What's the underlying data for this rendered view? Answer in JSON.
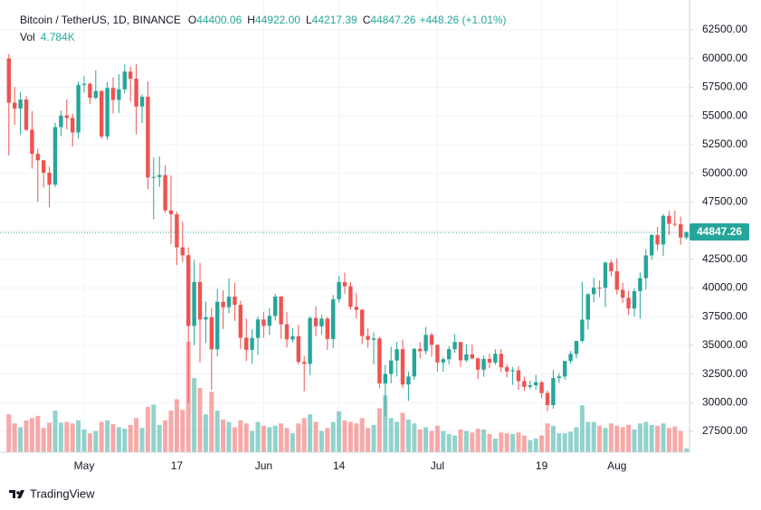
{
  "chart_data": {
    "type": "candlestick",
    "title": "Bitcoin / TetherUS, 1D, BINANCE",
    "header_values": [
      {
        "key": "O",
        "label": "44400.06"
      },
      {
        "key": "H",
        "label": "44922.00"
      },
      {
        "key": "L",
        "label": "44217.39"
      },
      {
        "key": "C",
        "label": "44847.26"
      }
    ],
    "change_label": "+448.26 (+1.01%)",
    "colors": {
      "up": "#26a69a",
      "down": "#ef5350"
    },
    "grid": true,
    "ylim": [
      25690,
      64470
    ],
    "yticks": [
      {
        "value": 62500,
        "label": "62500.00"
      },
      {
        "value": 60000,
        "label": "60000.00"
      },
      {
        "value": 57500,
        "label": "57500.00"
      },
      {
        "value": 55000,
        "label": "55000.00"
      },
      {
        "value": 52500,
        "label": "52500.00"
      },
      {
        "value": 50000,
        "label": "50000.00"
      },
      {
        "value": 47500,
        "label": "47500.00"
      },
      {
        "value": 45000,
        "label": "45000.00"
      },
      {
        "value": 42500,
        "label": "42500.00"
      },
      {
        "value": 40000,
        "label": "40000.00"
      },
      {
        "value": 37500,
        "label": "37500.00"
      },
      {
        "value": 35000,
        "label": "35000.00"
      },
      {
        "value": 32500,
        "label": "32500.00"
      },
      {
        "value": 30000,
        "label": "30000.00"
      },
      {
        "value": 27500,
        "label": "27500.00"
      }
    ],
    "categories": [
      null,
      null,
      null,
      null,
      null,
      null,
      null,
      null,
      null,
      null,
      null,
      null,
      null,
      "May",
      null,
      null,
      null,
      null,
      null,
      null,
      null,
      null,
      null,
      null,
      null,
      null,
      null,
      null,
      null,
      "17",
      null,
      null,
      null,
      null,
      null,
      null,
      null,
      null,
      null,
      null,
      null,
      null,
      null,
      null,
      "Jun",
      null,
      null,
      null,
      null,
      null,
      null,
      null,
      null,
      null,
      null,
      null,
      null,
      "14",
      null,
      null,
      null,
      null,
      null,
      null,
      null,
      null,
      null,
      null,
      null,
      null,
      null,
      null,
      null,
      null,
      "Jul",
      null,
      null,
      null,
      null,
      null,
      null,
      null,
      null,
      null,
      null,
      null,
      null,
      null,
      null,
      null,
      null,
      null,
      "19",
      null,
      null,
      null,
      null,
      null,
      null,
      null,
      null,
      null,
      null,
      null,
      null,
      "Aug",
      null,
      null,
      null,
      null,
      null,
      null,
      null,
      null,
      null,
      null,
      null,
      null
    ],
    "ohlc": [
      [
        60006,
        60400,
        51541,
        56150
      ],
      [
        56150,
        57520,
        54221,
        55633
      ],
      [
        55633,
        57076,
        53329,
        56425
      ],
      [
        56425,
        56757,
        53695,
        53788
      ],
      [
        53788,
        55410,
        50400,
        51690
      ],
      [
        51690,
        52130,
        47500,
        51125
      ],
      [
        51125,
        51167,
        48753,
        50047
      ],
      [
        50047,
        50567,
        47044,
        49004
      ],
      [
        49004,
        54400,
        48807,
        54021
      ],
      [
        54021,
        55460,
        53222,
        55033
      ],
      [
        55033,
        56428,
        53813,
        54824
      ],
      [
        54824,
        55195,
        52330,
        53556
      ],
      [
        53556,
        58000,
        53013,
        57697
      ],
      [
        57697,
        58459,
        57025,
        57797
      ],
      [
        57797,
        57911,
        56035,
        56578
      ],
      [
        56578,
        58972,
        56437,
        57169
      ],
      [
        57169,
        57200,
        53000,
        53200
      ],
      [
        53200,
        57938,
        52900,
        57436
      ],
      [
        57436,
        58360,
        55200,
        56393
      ],
      [
        56393,
        58650,
        55241,
        57314
      ],
      [
        57314,
        59500,
        56975,
        58862
      ],
      [
        58862,
        59300,
        56235,
        58240
      ],
      [
        58240,
        59500,
        53400,
        55816
      ],
      [
        55816,
        56862,
        54370,
        56670
      ],
      [
        56670,
        58000,
        48600,
        49631
      ],
      [
        49631,
        51367,
        46000,
        49670
      ],
      [
        49670,
        51483,
        48800,
        49841
      ],
      [
        49841,
        50700,
        46555,
        46762
      ],
      [
        46762,
        49800,
        43825,
        46431
      ],
      [
        46431,
        46643,
        42001,
        43538
      ],
      [
        43538,
        45799,
        42250,
        42850
      ],
      [
        42850,
        43546,
        30000,
        36690
      ],
      [
        36690,
        42451,
        35000,
        40526
      ],
      [
        40526,
        42200,
        33488,
        37252
      ],
      [
        37252,
        38829,
        35200,
        37449
      ],
      [
        37449,
        38270,
        31111,
        34655
      ],
      [
        34655,
        39920,
        34031,
        38796
      ],
      [
        38796,
        39791,
        36419,
        38324
      ],
      [
        38324,
        40841,
        37800,
        39241
      ],
      [
        39241,
        40411,
        37134,
        38529
      ],
      [
        38529,
        38877,
        34684,
        35663
      ],
      [
        35663,
        37338,
        33632,
        34605
      ],
      [
        34605,
        36400,
        33379,
        35641
      ],
      [
        35641,
        37499,
        34153,
        37253
      ],
      [
        37253,
        37894,
        35666,
        36694
      ],
      [
        36694,
        38225,
        35920,
        37568
      ],
      [
        37568,
        39476,
        37170,
        39246
      ],
      [
        39246,
        39289,
        35555,
        36829
      ],
      [
        36829,
        37925,
        34800,
        35513
      ],
      [
        35513,
        36488,
        35242,
        35796
      ],
      [
        35796,
        36800,
        33350,
        33552
      ],
      [
        33552,
        34068,
        31000,
        33380
      ],
      [
        33380,
        37534,
        32396,
        37389
      ],
      [
        37389,
        38400,
        35782,
        36662
      ],
      [
        36662,
        37680,
        35936,
        37331
      ],
      [
        37331,
        37463,
        34600,
        35546
      ],
      [
        35546,
        39380,
        34757,
        39020
      ],
      [
        39020,
        41064,
        38730,
        40516
      ],
      [
        40516,
        41330,
        39506,
        40144
      ],
      [
        40144,
        40527,
        38116,
        38349
      ],
      [
        38349,
        39559,
        37365,
        38092
      ],
      [
        38092,
        38202,
        35129,
        35819
      ],
      [
        35819,
        36457,
        34803,
        35484
      ],
      [
        35484,
        36137,
        33336,
        35600
      ],
      [
        35600,
        35750,
        31251,
        31676
      ],
      [
        31676,
        33298,
        28805,
        32505
      ],
      [
        32505,
        34881,
        31683,
        33676
      ],
      [
        33676,
        35298,
        32286,
        34663
      ],
      [
        34663,
        35500,
        31275,
        31584
      ],
      [
        31584,
        32730,
        30151,
        32283
      ],
      [
        32283,
        34749,
        32000,
        34700
      ],
      [
        34700,
        35297,
        33862,
        34494
      ],
      [
        34494,
        36600,
        34225,
        35911
      ],
      [
        35911,
        36100,
        34017,
        35045
      ],
      [
        35045,
        35057,
        32711,
        33504
      ],
      [
        33504,
        33977,
        32699,
        33786
      ],
      [
        33786,
        34945,
        33316,
        34669
      ],
      [
        34669,
        35967,
        34357,
        35287
      ],
      [
        35287,
        35293,
        33125,
        33690
      ],
      [
        33690,
        35118,
        33532,
        34220
      ],
      [
        34220,
        35059,
        33777,
        33863
      ],
      [
        33863,
        33929,
        32077,
        32875
      ],
      [
        32875,
        34100,
        32261,
        33815
      ],
      [
        33815,
        34262,
        33004,
        33502
      ],
      [
        33502,
        34666,
        33306,
        34259
      ],
      [
        34259,
        34678,
        32658,
        33086
      ],
      [
        33086,
        33340,
        32202,
        32729
      ],
      [
        32729,
        33114,
        31550,
        32820
      ],
      [
        32820,
        33185,
        31133,
        31880
      ],
      [
        31880,
        32249,
        31020,
        31383
      ],
      [
        31383,
        31935,
        31165,
        31521
      ],
      [
        31521,
        32435,
        31108,
        31778
      ],
      [
        31778,
        31899,
        30407,
        30839
      ],
      [
        30839,
        31063,
        29278,
        29790
      ],
      [
        29790,
        32858,
        29482,
        32144
      ],
      [
        32144,
        32591,
        31708,
        32287
      ],
      [
        32287,
        33650,
        32000,
        33634
      ],
      [
        33634,
        34500,
        33401,
        34258
      ],
      [
        34258,
        35398,
        33851,
        35381
      ],
      [
        35381,
        40550,
        35205,
        37237
      ],
      [
        37237,
        39542,
        36383,
        39457
      ],
      [
        39457,
        40900,
        38772,
        40019
      ],
      [
        40019,
        40640,
        39200,
        40016
      ],
      [
        40016,
        42316,
        38313,
        42206
      ],
      [
        42206,
        42448,
        41000,
        41461
      ],
      [
        41461,
        42599,
        39422,
        39845
      ],
      [
        39845,
        40459,
        38690,
        39147
      ],
      [
        39147,
        39780,
        37642,
        38207
      ],
      [
        38207,
        39969,
        37508,
        39723
      ],
      [
        39723,
        41350,
        37332,
        40862
      ],
      [
        40862,
        43392,
        39853,
        42836
      ],
      [
        42836,
        44700,
        42446,
        44614
      ],
      [
        44614,
        45310,
        43261,
        43792
      ],
      [
        43792,
        46454,
        42779,
        46285
      ],
      [
        46285,
        46700,
        44600,
        45593
      ],
      [
        45593,
        46744,
        45341,
        45552
      ],
      [
        45552,
        46218,
        43770,
        44399.0
      ],
      [
        44400.06,
        44922.0,
        44217.39,
        44847.26
      ]
    ],
    "volume": {
      "name": "Vol",
      "last_label": "4.784K",
      "values": [
        50000,
        38000,
        33000,
        42000,
        45000,
        48000,
        32000,
        39000,
        55000,
        39000,
        40000,
        38000,
        42000,
        30000,
        25000,
        28000,
        40000,
        42000,
        37000,
        33000,
        31000,
        36000,
        45000,
        32000,
        60000,
        63000,
        36000,
        42000,
        55000,
        70000,
        56000,
        146000,
        98000,
        85000,
        50000,
        80000,
        55000,
        43000,
        40000,
        33000,
        42000,
        38000,
        28000,
        40000,
        35000,
        33000,
        35000,
        38000,
        32000,
        25000,
        38000,
        45000,
        50000,
        40000,
        28000,
        32000,
        40000,
        54000,
        42000,
        40000,
        38000,
        45000,
        32000,
        36000,
        58000,
        75000,
        45000,
        40000,
        52000,
        43000,
        38000,
        30000,
        33000,
        28000,
        35000,
        28000,
        24000,
        22000,
        30000,
        28000,
        26000,
        31000,
        30000,
        24000,
        18000,
        26000,
        25000,
        24000,
        26000,
        22000,
        16000,
        18000,
        22000,
        38000,
        35000,
        25000,
        25000,
        27000,
        33000,
        62000,
        40000,
        40000,
        35000,
        32000,
        38000,
        35000,
        33000,
        36000,
        30000,
        38000,
        40000,
        36000,
        35000,
        38000,
        32000,
        34000,
        28000,
        4784
      ]
    },
    "brand": "TradingView"
  }
}
